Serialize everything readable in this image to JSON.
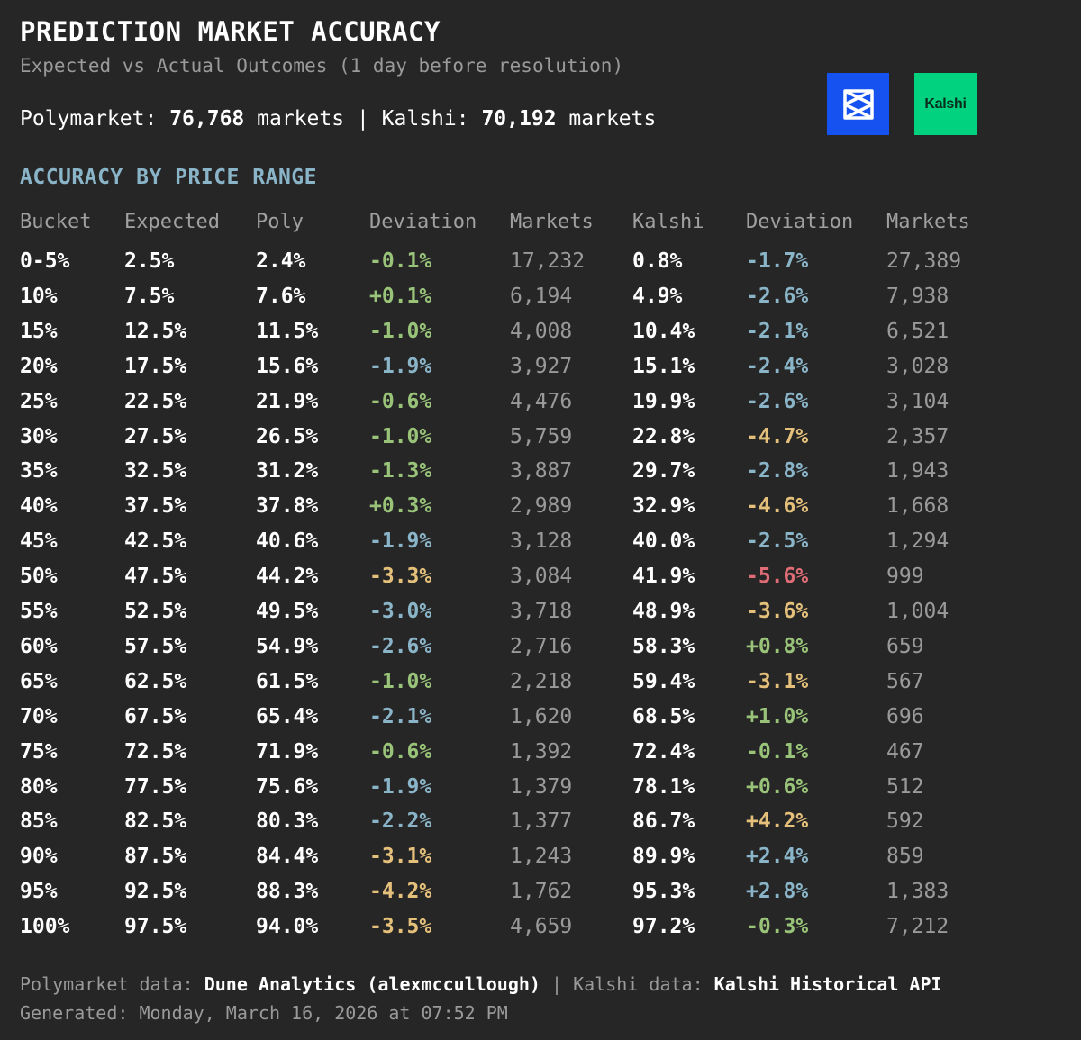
{
  "header": {
    "title": "PREDICTION MARKET ACCURACY",
    "subtitle": "Expected vs Actual Outcomes (1 day before resolution)",
    "poly_label": "Polymarket:",
    "poly_count": "76,768",
    "markets_word": "markets",
    "separator": "|",
    "kalshi_label": "Kalshi:",
    "kalshi_count": "70,192"
  },
  "logos": {
    "polymarket_icon": "polymarket-logo",
    "kalshi_text": "Kalshi",
    "polymarket_color": "#1652f0",
    "kalshi_color": "#00d27f"
  },
  "section_title": "ACCURACY BY PRICE RANGE",
  "columns": [
    "Bucket",
    "Expected",
    "Poly",
    "Deviation",
    "Markets",
    "Kalshi",
    "Deviation",
    "Markets"
  ],
  "colors": {
    "green": "#98c379",
    "blue": "#8ab4c8",
    "yellow": "#e5c07b",
    "red": "#e06c75"
  },
  "rows": [
    {
      "bucket": "0-5%",
      "expected": "2.5%",
      "poly": "2.4%",
      "poly_dev": "-0.1%",
      "poly_dev_color": "green",
      "poly_markets": "17,232",
      "kalshi": "0.8%",
      "kalshi_dev": "-1.7%",
      "kalshi_dev_color": "blue",
      "kalshi_markets": "27,389"
    },
    {
      "bucket": "10%",
      "expected": "7.5%",
      "poly": "7.6%",
      "poly_dev": "+0.1%",
      "poly_dev_color": "green",
      "poly_markets": "6,194",
      "kalshi": "4.9%",
      "kalshi_dev": "-2.6%",
      "kalshi_dev_color": "blue",
      "kalshi_markets": "7,938"
    },
    {
      "bucket": "15%",
      "expected": "12.5%",
      "poly": "11.5%",
      "poly_dev": "-1.0%",
      "poly_dev_color": "green",
      "poly_markets": "4,008",
      "kalshi": "10.4%",
      "kalshi_dev": "-2.1%",
      "kalshi_dev_color": "blue",
      "kalshi_markets": "6,521"
    },
    {
      "bucket": "20%",
      "expected": "17.5%",
      "poly": "15.6%",
      "poly_dev": "-1.9%",
      "poly_dev_color": "blue",
      "poly_markets": "3,927",
      "kalshi": "15.1%",
      "kalshi_dev": "-2.4%",
      "kalshi_dev_color": "blue",
      "kalshi_markets": "3,028"
    },
    {
      "bucket": "25%",
      "expected": "22.5%",
      "poly": "21.9%",
      "poly_dev": "-0.6%",
      "poly_dev_color": "green",
      "poly_markets": "4,476",
      "kalshi": "19.9%",
      "kalshi_dev": "-2.6%",
      "kalshi_dev_color": "blue",
      "kalshi_markets": "3,104"
    },
    {
      "bucket": "30%",
      "expected": "27.5%",
      "poly": "26.5%",
      "poly_dev": "-1.0%",
      "poly_dev_color": "green",
      "poly_markets": "5,759",
      "kalshi": "22.8%",
      "kalshi_dev": "-4.7%",
      "kalshi_dev_color": "yellow",
      "kalshi_markets": "2,357"
    },
    {
      "bucket": "35%",
      "expected": "32.5%",
      "poly": "31.2%",
      "poly_dev": "-1.3%",
      "poly_dev_color": "green",
      "poly_markets": "3,887",
      "kalshi": "29.7%",
      "kalshi_dev": "-2.8%",
      "kalshi_dev_color": "blue",
      "kalshi_markets": "1,943"
    },
    {
      "bucket": "40%",
      "expected": "37.5%",
      "poly": "37.8%",
      "poly_dev": "+0.3%",
      "poly_dev_color": "green",
      "poly_markets": "2,989",
      "kalshi": "32.9%",
      "kalshi_dev": "-4.6%",
      "kalshi_dev_color": "yellow",
      "kalshi_markets": "1,668"
    },
    {
      "bucket": "45%",
      "expected": "42.5%",
      "poly": "40.6%",
      "poly_dev": "-1.9%",
      "poly_dev_color": "blue",
      "poly_markets": "3,128",
      "kalshi": "40.0%",
      "kalshi_dev": "-2.5%",
      "kalshi_dev_color": "blue",
      "kalshi_markets": "1,294"
    },
    {
      "bucket": "50%",
      "expected": "47.5%",
      "poly": "44.2%",
      "poly_dev": "-3.3%",
      "poly_dev_color": "yellow",
      "poly_markets": "3,084",
      "kalshi": "41.9%",
      "kalshi_dev": "-5.6%",
      "kalshi_dev_color": "red",
      "kalshi_markets": "999"
    },
    {
      "bucket": "55%",
      "expected": "52.5%",
      "poly": "49.5%",
      "poly_dev": "-3.0%",
      "poly_dev_color": "blue",
      "poly_markets": "3,718",
      "kalshi": "48.9%",
      "kalshi_dev": "-3.6%",
      "kalshi_dev_color": "yellow",
      "kalshi_markets": "1,004"
    },
    {
      "bucket": "60%",
      "expected": "57.5%",
      "poly": "54.9%",
      "poly_dev": "-2.6%",
      "poly_dev_color": "blue",
      "poly_markets": "2,716",
      "kalshi": "58.3%",
      "kalshi_dev": "+0.8%",
      "kalshi_dev_color": "green",
      "kalshi_markets": "659"
    },
    {
      "bucket": "65%",
      "expected": "62.5%",
      "poly": "61.5%",
      "poly_dev": "-1.0%",
      "poly_dev_color": "green",
      "poly_markets": "2,218",
      "kalshi": "59.4%",
      "kalshi_dev": "-3.1%",
      "kalshi_dev_color": "yellow",
      "kalshi_markets": "567"
    },
    {
      "bucket": "70%",
      "expected": "67.5%",
      "poly": "65.4%",
      "poly_dev": "-2.1%",
      "poly_dev_color": "blue",
      "poly_markets": "1,620",
      "kalshi": "68.5%",
      "kalshi_dev": "+1.0%",
      "kalshi_dev_color": "green",
      "kalshi_markets": "696"
    },
    {
      "bucket": "75%",
      "expected": "72.5%",
      "poly": "71.9%",
      "poly_dev": "-0.6%",
      "poly_dev_color": "green",
      "poly_markets": "1,392",
      "kalshi": "72.4%",
      "kalshi_dev": "-0.1%",
      "kalshi_dev_color": "green",
      "kalshi_markets": "467"
    },
    {
      "bucket": "80%",
      "expected": "77.5%",
      "poly": "75.6%",
      "poly_dev": "-1.9%",
      "poly_dev_color": "blue",
      "poly_markets": "1,379",
      "kalshi": "78.1%",
      "kalshi_dev": "+0.6%",
      "kalshi_dev_color": "green",
      "kalshi_markets": "512"
    },
    {
      "bucket": "85%",
      "expected": "82.5%",
      "poly": "80.3%",
      "poly_dev": "-2.2%",
      "poly_dev_color": "blue",
      "poly_markets": "1,377",
      "kalshi": "86.7%",
      "kalshi_dev": "+4.2%",
      "kalshi_dev_color": "yellow",
      "kalshi_markets": "592"
    },
    {
      "bucket": "90%",
      "expected": "87.5%",
      "poly": "84.4%",
      "poly_dev": "-3.1%",
      "poly_dev_color": "yellow",
      "poly_markets": "1,243",
      "kalshi": "89.9%",
      "kalshi_dev": "+2.4%",
      "kalshi_dev_color": "blue",
      "kalshi_markets": "859"
    },
    {
      "bucket": "95%",
      "expected": "92.5%",
      "poly": "88.3%",
      "poly_dev": "-4.2%",
      "poly_dev_color": "yellow",
      "poly_markets": "1,762",
      "kalshi": "95.3%",
      "kalshi_dev": "+2.8%",
      "kalshi_dev_color": "blue",
      "kalshi_markets": "1,383"
    },
    {
      "bucket": "100%",
      "expected": "97.5%",
      "poly": "94.0%",
      "poly_dev": "-3.5%",
      "poly_dev_color": "yellow",
      "poly_markets": "4,659",
      "kalshi": "97.2%",
      "kalshi_dev": "-0.3%",
      "kalshi_dev_color": "green",
      "kalshi_markets": "7,212"
    }
  ],
  "footer": {
    "poly_source_label": "Polymarket data:",
    "poly_source": "Dune Analytics (alexmccullough)",
    "separator": "|",
    "kalshi_source_label": "Kalshi data:",
    "kalshi_source": "Kalshi Historical API",
    "generated": "Generated: Monday, March 16, 2026 at 07:52 PM"
  }
}
